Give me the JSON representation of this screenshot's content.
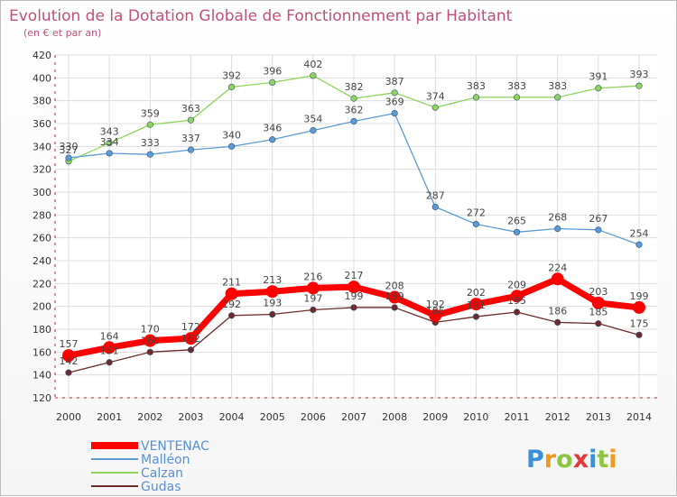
{
  "chart_data": {
    "type": "line",
    "title": "Evolution de la Dotation Globale de Fonctionnement par Habitant",
    "subtitle": "(en € et par an)",
    "xlabel": "",
    "ylabel": "",
    "ylim": [
      120,
      420
    ],
    "yticks": [
      120,
      140,
      160,
      180,
      200,
      220,
      240,
      260,
      280,
      300,
      320,
      340,
      360,
      380,
      400,
      420
    ],
    "x": [
      "2000",
      "2001",
      "2002",
      "2003",
      "2004",
      "2005",
      "2006",
      "2007",
      "2008",
      "2009",
      "2010",
      "2011",
      "2012",
      "2013",
      "2014"
    ],
    "grid": true,
    "legend_position": "bottom-left",
    "series": [
      {
        "name": "VENTENAC",
        "color": "#ff0000",
        "values": [
          157,
          164,
          170,
          172,
          211,
          213,
          216,
          217,
          208,
          192,
          202,
          209,
          224,
          203,
          199
        ]
      },
      {
        "name": "Malléon",
        "color": "#5b9bd5",
        "values": [
          330,
          334,
          333,
          337,
          340,
          346,
          354,
          362,
          369,
          287,
          272,
          265,
          268,
          267,
          254
        ]
      },
      {
        "name": "Calzan",
        "color": "#8fd45a",
        "values": [
          327,
          343,
          359,
          363,
          392,
          396,
          402,
          382,
          387,
          374,
          383,
          383,
          383,
          391,
          393
        ]
      },
      {
        "name": "Gudas",
        "color": "#6e2a2a",
        "values": [
          142,
          151,
          160,
          162,
          192,
          193,
          197,
          199,
          199,
          186,
          191,
          195,
          186,
          185,
          175
        ]
      }
    ]
  },
  "brand": {
    "name": "Proxiti",
    "letters": [
      "P",
      "r",
      "o",
      "x",
      "i",
      "t",
      "i"
    ]
  }
}
